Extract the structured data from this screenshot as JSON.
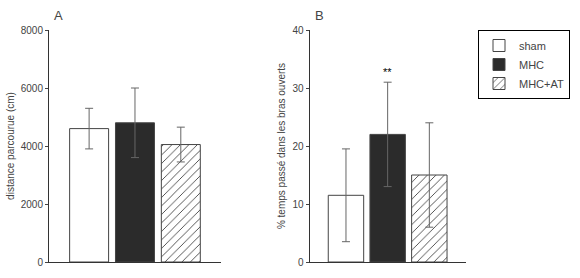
{
  "chart_data": [
    {
      "type": "bar",
      "title": "A",
      "ylabel": "distance parcourue (cm)",
      "categories": [
        null
      ],
      "series": [
        {
          "name": "sham",
          "color": "white",
          "values": [
            4600
          ],
          "errors": [
            700
          ]
        },
        {
          "name": "MHC",
          "color": "#2b2b2b",
          "values": [
            4800
          ],
          "errors": [
            1200
          ]
        },
        {
          "name": "MHC+AT",
          "color": "white",
          "marker": "hatch",
          "values": [
            4050
          ],
          "errors": [
            600
          ]
        }
      ],
      "ylim": [
        0,
        8000
      ],
      "yticks": [
        0,
        2000,
        4000,
        6000,
        8000
      ],
      "grid": false,
      "tick_labels": "y"
    },
    {
      "type": "bar",
      "title": "B",
      "ylabel": "% temps passé dans les bras ouverts",
      "categories": [
        null
      ],
      "series": [
        {
          "name": "sham",
          "color": "white",
          "values": [
            11.5
          ],
          "errors": [
            8
          ]
        },
        {
          "name": "MHC",
          "color": "#2b2b2b",
          "values": [
            22
          ],
          "errors": [
            9
          ]
        },
        {
          "name": "MHC+AT",
          "color": "white",
          "marker": "hatch",
          "values": [
            15
          ],
          "errors": [
            9
          ]
        }
      ],
      "annotations": [
        {
          "text": "**",
          "series": "MHC"
        }
      ],
      "ylim": [
        0,
        40
      ],
      "yticks": [
        0,
        10,
        20,
        30,
        40
      ],
      "grid": false,
      "tick_labels": "y",
      "legend": "right"
    }
  ]
}
